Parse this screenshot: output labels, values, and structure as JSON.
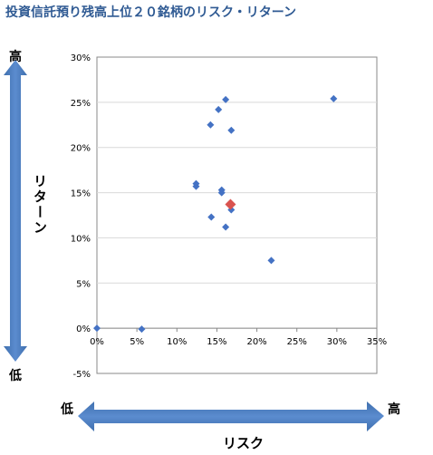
{
  "title": "投資信託預り残高上位２０銘柄のリスク・リターン",
  "y_axis": {
    "label": "リターン",
    "high": "高",
    "low": "低"
  },
  "x_axis": {
    "label": "リスク",
    "high": "高",
    "low": "低"
  },
  "colors": {
    "title": "#2f5a93",
    "arrow": "#4f81bd",
    "point": "#4472c4",
    "highlight": "#d9534f",
    "grid": "#d9d9d9"
  },
  "chart_data": {
    "type": "scatter",
    "xlim": [
      0,
      35
    ],
    "ylim": [
      -5,
      30
    ],
    "x_ticks": [
      "0%",
      "5%",
      "10%",
      "15%",
      "20%",
      "25%",
      "30%",
      "35%"
    ],
    "y_ticks": [
      "30%",
      "25%",
      "20%",
      "15%",
      "10%",
      "5%",
      "0%",
      "-5%"
    ],
    "grid": "horizontal",
    "points": [
      {
        "x": 0.0,
        "y": 0.0
      },
      {
        "x": 5.6,
        "y": -0.1
      },
      {
        "x": 12.4,
        "y": 16.0
      },
      {
        "x": 12.4,
        "y": 15.7
      },
      {
        "x": 14.2,
        "y": 22.5
      },
      {
        "x": 14.3,
        "y": 12.3
      },
      {
        "x": 15.2,
        "y": 24.2
      },
      {
        "x": 15.6,
        "y": 15.3
      },
      {
        "x": 15.6,
        "y": 15.0
      },
      {
        "x": 16.1,
        "y": 25.3
      },
      {
        "x": 16.1,
        "y": 11.2
      },
      {
        "x": 16.8,
        "y": 21.9
      },
      {
        "x": 16.8,
        "y": 13.1
      },
      {
        "x": 21.8,
        "y": 7.5
      },
      {
        "x": 29.6,
        "y": 25.4
      }
    ],
    "highlight": {
      "x": 16.7,
      "y": 13.7
    }
  }
}
